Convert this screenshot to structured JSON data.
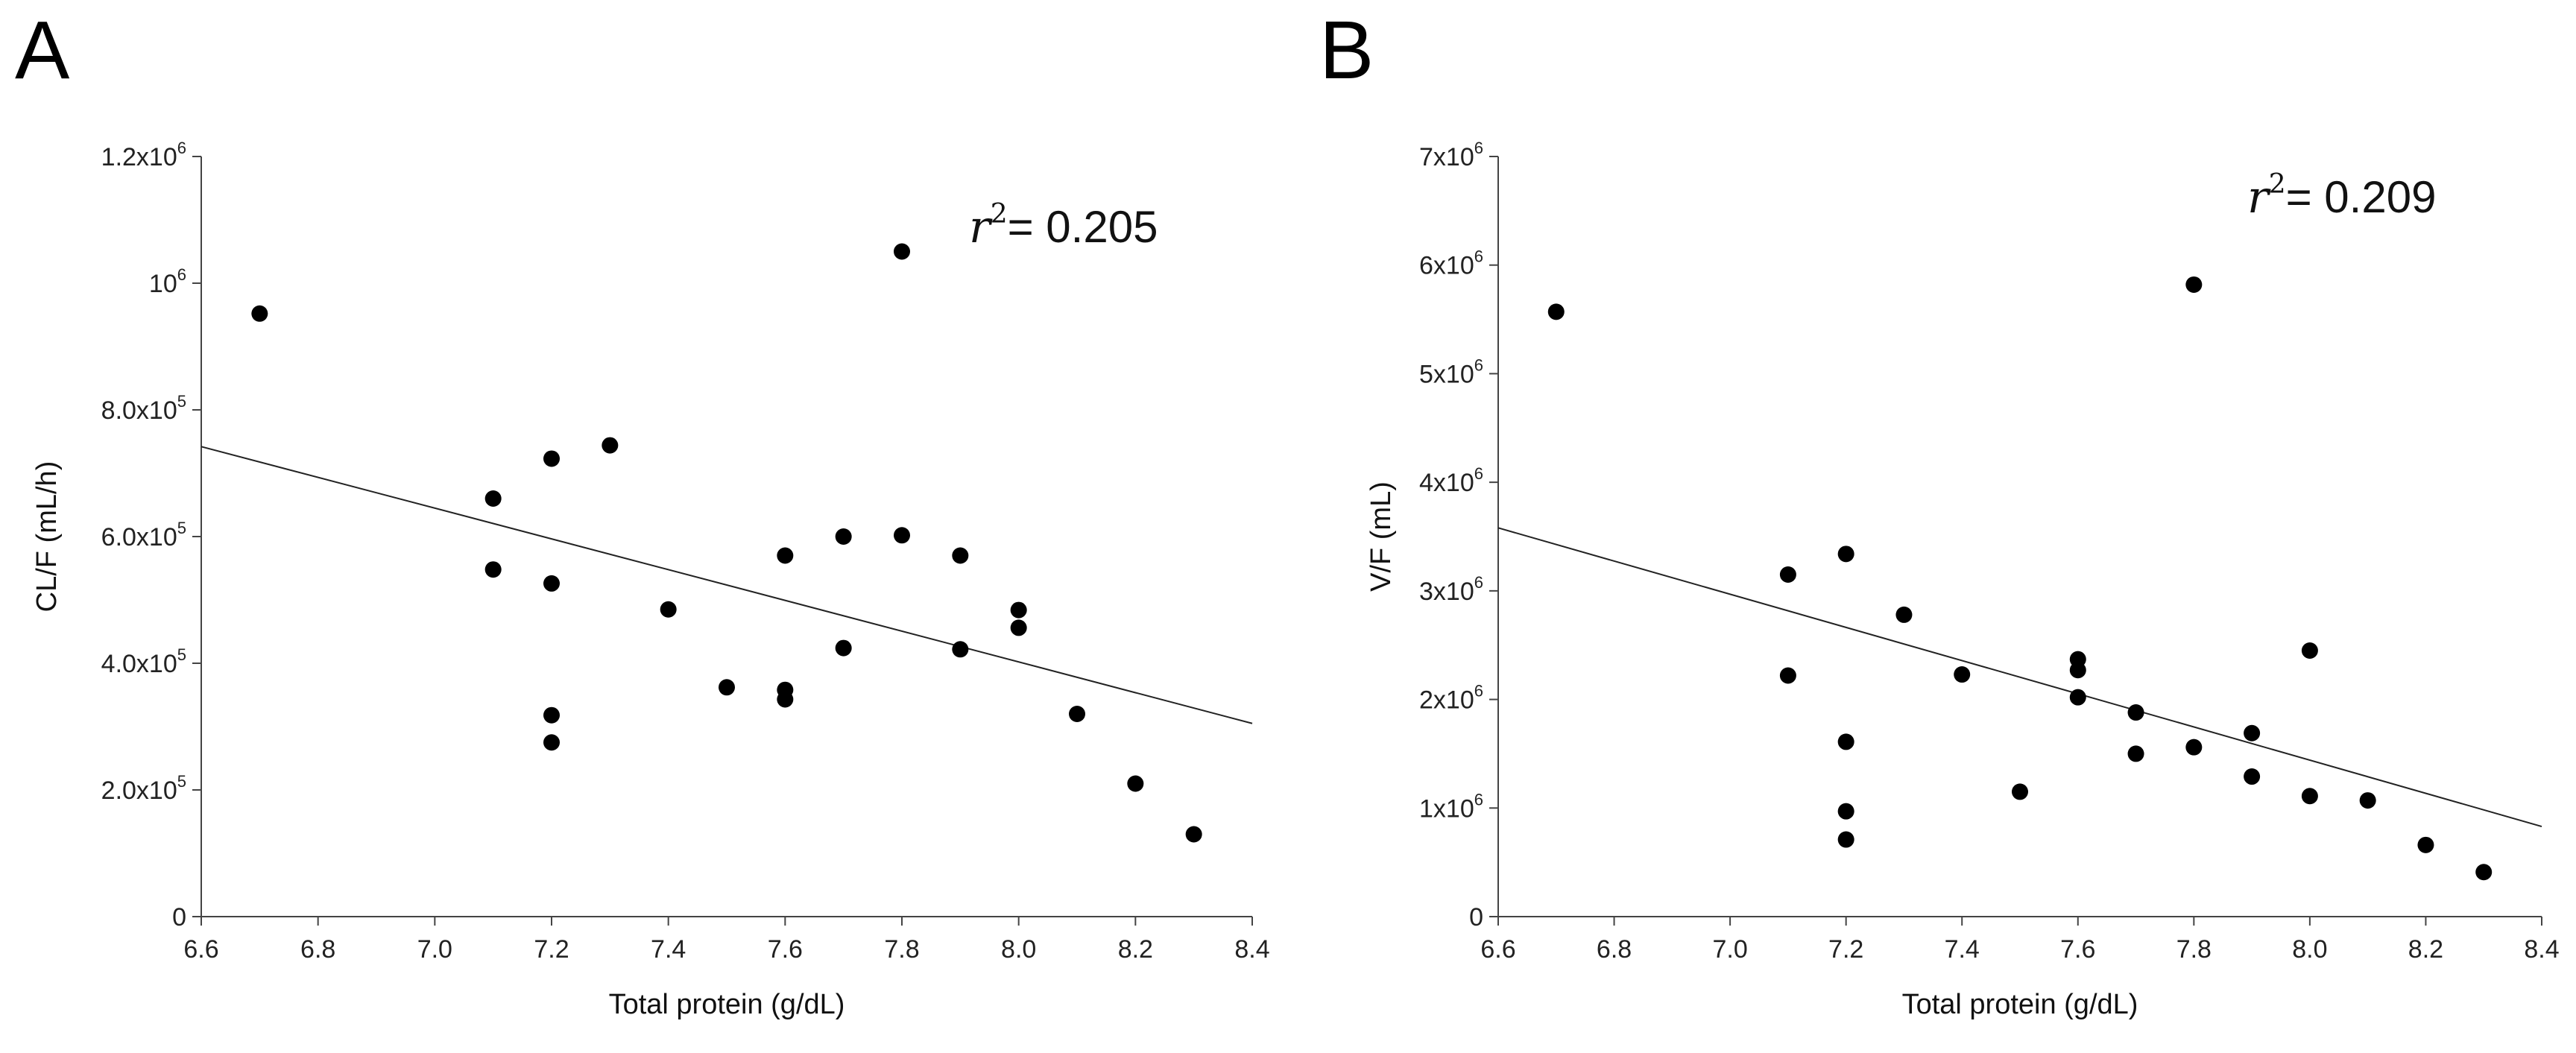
{
  "chart_data": [
    {
      "panel": "A",
      "type": "scatter",
      "xlabel": "Total protein (g/dL)",
      "ylabel": "CL/F (mL/h)",
      "xlim": [
        6.6,
        8.4
      ],
      "ylim": [
        0,
        1200000
      ],
      "x_ticks": [
        6.6,
        6.8,
        7.0,
        7.2,
        7.4,
        7.6,
        7.8,
        8.0,
        8.2,
        8.4
      ],
      "x_tick_labels": [
        "6.6",
        "6.8",
        "7.0",
        "7.2",
        "7.4",
        "7.6",
        "7.8",
        "8.0",
        "8.2",
        "8.4"
      ],
      "y_ticks": [
        {
          "value": 0,
          "base": "0",
          "exp": ""
        },
        {
          "value": 200000,
          "base": "2.0x10",
          "exp": "5"
        },
        {
          "value": 400000,
          "base": "4.0x10",
          "exp": "5"
        },
        {
          "value": 600000,
          "base": "6.0x10",
          "exp": "5"
        },
        {
          "value": 800000,
          "base": "8.0x10",
          "exp": "5"
        },
        {
          "value": 1000000,
          "base": "10",
          "exp": "6"
        },
        {
          "value": 1200000,
          "base": "1.2x10",
          "exp": "6"
        }
      ],
      "annotation": {
        "var": "r",
        "exp": "2",
        "text": "= 0.205"
      },
      "regression": {
        "x": [
          6.6,
          8.4
        ],
        "y": [
          742000,
          305000
        ]
      },
      "points": [
        {
          "x": 6.7,
          "y": 952000
        },
        {
          "x": 7.1,
          "y": 660000
        },
        {
          "x": 7.1,
          "y": 548000
        },
        {
          "x": 7.2,
          "y": 723000
        },
        {
          "x": 7.2,
          "y": 526000
        },
        {
          "x": 7.2,
          "y": 318000
        },
        {
          "x": 7.2,
          "y": 275000
        },
        {
          "x": 7.3,
          "y": 744000
        },
        {
          "x": 7.4,
          "y": 485000
        },
        {
          "x": 7.5,
          "y": 362000
        },
        {
          "x": 7.6,
          "y": 570000
        },
        {
          "x": 7.6,
          "y": 358000
        },
        {
          "x": 7.6,
          "y": 343000
        },
        {
          "x": 7.7,
          "y": 600000
        },
        {
          "x": 7.7,
          "y": 424000
        },
        {
          "x": 7.8,
          "y": 1050000
        },
        {
          "x": 7.8,
          "y": 602000
        },
        {
          "x": 7.9,
          "y": 570000
        },
        {
          "x": 7.9,
          "y": 422000
        },
        {
          "x": 8.0,
          "y": 484000
        },
        {
          "x": 8.0,
          "y": 456000
        },
        {
          "x": 8.1,
          "y": 320000
        },
        {
          "x": 8.2,
          "y": 210000
        },
        {
          "x": 8.3,
          "y": 130000
        }
      ]
    },
    {
      "panel": "B",
      "type": "scatter",
      "xlabel": "Total protein (g/dL)",
      "ylabel": "V/F (mL)",
      "xlim": [
        6.6,
        8.4
      ],
      "ylim": [
        0,
        7000000
      ],
      "x_ticks": [
        6.6,
        6.8,
        7.0,
        7.2,
        7.4,
        7.6,
        7.8,
        8.0,
        8.2,
        8.4
      ],
      "x_tick_labels": [
        "6.6",
        "6.8",
        "7.0",
        "7.2",
        "7.4",
        "7.6",
        "7.8",
        "8.0",
        "8.2",
        "8.4"
      ],
      "y_ticks": [
        {
          "value": 0,
          "base": "0",
          "exp": ""
        },
        {
          "value": 1000000,
          "base": "1x10",
          "exp": "6"
        },
        {
          "value": 2000000,
          "base": "2x10",
          "exp": "6"
        },
        {
          "value": 3000000,
          "base": "3x10",
          "exp": "6"
        },
        {
          "value": 4000000,
          "base": "4x10",
          "exp": "6"
        },
        {
          "value": 5000000,
          "base": "5x10",
          "exp": "6"
        },
        {
          "value": 6000000,
          "base": "6x10",
          "exp": "6"
        },
        {
          "value": 7000000,
          "base": "7x10",
          "exp": "6"
        }
      ],
      "annotation": {
        "var": "r",
        "exp": "2",
        "text": "= 0.209"
      },
      "regression": {
        "x": [
          6.6,
          8.4
        ],
        "y": [
          3580000,
          830000
        ]
      },
      "points": [
        {
          "x": 6.7,
          "y": 5570000
        },
        {
          "x": 7.1,
          "y": 3150000
        },
        {
          "x": 7.1,
          "y": 2220000
        },
        {
          "x": 7.2,
          "y": 3340000
        },
        {
          "x": 7.2,
          "y": 1610000
        },
        {
          "x": 7.2,
          "y": 970000
        },
        {
          "x": 7.2,
          "y": 710000
        },
        {
          "x": 7.3,
          "y": 2780000
        },
        {
          "x": 7.4,
          "y": 2230000
        },
        {
          "x": 7.5,
          "y": 1150000
        },
        {
          "x": 7.6,
          "y": 2370000
        },
        {
          "x": 7.6,
          "y": 2270000
        },
        {
          "x": 7.6,
          "y": 2020000
        },
        {
          "x": 7.7,
          "y": 1880000
        },
        {
          "x": 7.7,
          "y": 1500000
        },
        {
          "x": 7.8,
          "y": 5820000
        },
        {
          "x": 7.8,
          "y": 1560000
        },
        {
          "x": 7.9,
          "y": 1690000
        },
        {
          "x": 7.9,
          "y": 1290000
        },
        {
          "x": 8.0,
          "y": 2450000
        },
        {
          "x": 8.0,
          "y": 1110000
        },
        {
          "x": 8.1,
          "y": 1070000
        },
        {
          "x": 8.2,
          "y": 660000
        },
        {
          "x": 8.3,
          "y": 410000
        }
      ]
    }
  ]
}
